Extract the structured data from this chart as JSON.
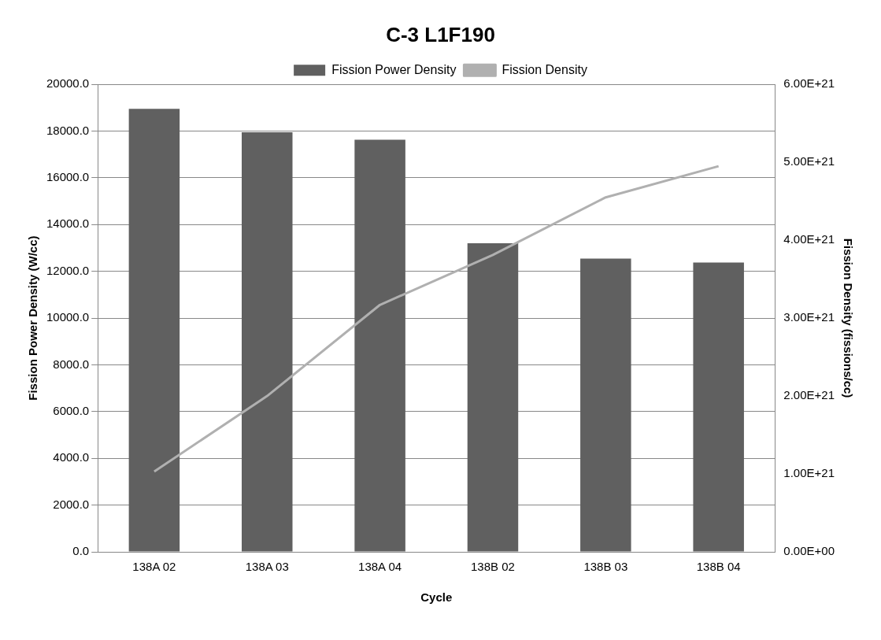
{
  "chart_data": {
    "type": "bar",
    "title": "C-3 L1F190",
    "xlabel": "Cycle",
    "ylabel": "Fission Power Density (W/cc)",
    "y2label": "Fission Density (fissions/cc)",
    "categories": [
      "138A 02",
      "138A 03",
      "138A 04",
      "138B 02",
      "138B 03",
      "138B 04"
    ],
    "series": [
      {
        "name": "Fission Power Density",
        "color": "#606060",
        "values": [
          18950,
          17950,
          17630,
          13200,
          12550,
          12380
        ]
      },
      {
        "name": "Fission Density",
        "type": "line",
        "axis": "y2",
        "color": "#b0b0b0",
        "values": [
          1.03e+21,
          2e+21,
          3.17e+21,
          3.81e+21,
          4.55e+21,
          4.95e+21
        ]
      }
    ],
    "ylim": [
      0,
      20000
    ],
    "yticks": [
      {
        "value": 0,
        "label": "0.0"
      },
      {
        "value": 2000,
        "label": "2000.0"
      },
      {
        "value": 4000,
        "label": "4000.0"
      },
      {
        "value": 6000,
        "label": "6000.0"
      },
      {
        "value": 8000,
        "label": "8000.0"
      },
      {
        "value": 10000,
        "label": "10000.0"
      },
      {
        "value": 12000,
        "label": "12000.0"
      },
      {
        "value": 14000,
        "label": "14000.0"
      },
      {
        "value": 16000,
        "label": "16000.0"
      },
      {
        "value": 18000,
        "label": "18000.0"
      },
      {
        "value": 20000,
        "label": "20000.0"
      }
    ],
    "y2lim": [
      0,
      6e+21
    ],
    "y2ticks": [
      {
        "value": 0,
        "label": "0.00E+00"
      },
      {
        "value": 1e+21,
        "label": "1.00E+21"
      },
      {
        "value": 2e+21,
        "label": "2.00E+21"
      },
      {
        "value": 3e+21,
        "label": "3.00E+21"
      },
      {
        "value": 4e+21,
        "label": "4.00E+21"
      },
      {
        "value": 5e+21,
        "label": "5.00E+21"
      },
      {
        "value": 6e+21,
        "label": "6.00E+21"
      }
    ],
    "grid": "y",
    "legend": "top",
    "marker": "none",
    "line_style": "solid"
  }
}
